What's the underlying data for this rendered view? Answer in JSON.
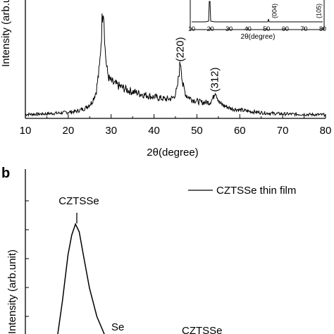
{
  "chart_data": [
    {
      "panel": "",
      "type": "line",
      "xlabel": "2θ(degree)",
      "ylabel": "Intensity (arb.unit)",
      "xlim": [
        10,
        80
      ],
      "xticks": [
        10,
        20,
        30,
        40,
        50,
        60,
        70,
        80
      ],
      "xtick_labels": [
        "10",
        "20",
        "30",
        "40",
        "50",
        "60",
        "70",
        "80"
      ],
      "x": [
        10,
        14,
        18,
        22,
        24,
        25.5,
        26.5,
        27.3,
        27.8,
        28.1,
        28.3,
        28.6,
        29,
        29.6,
        30.5,
        32,
        34,
        37,
        40,
        43,
        44.5,
        45.4,
        45.8,
        46.2,
        46.7,
        47.5,
        49,
        51,
        53,
        53.8,
        54.3,
        54.7,
        55.3,
        56.5,
        58,
        62,
        66,
        70,
        75,
        80
      ],
      "values": [
        0.9,
        1.0,
        1.2,
        1.6,
        2.3,
        3.6,
        6.0,
        11.5,
        20.0,
        26.0,
        24.0,
        15.5,
        11.0,
        8.7,
        7.9,
        7.2,
        6.3,
        5.5,
        4.8,
        4.3,
        4.6,
        6.5,
        10.0,
        13.2,
        7.5,
        5.2,
        4.2,
        3.6,
        3.6,
        4.6,
        6.3,
        5.0,
        3.4,
        2.8,
        2.2,
        1.6,
        1.2,
        1.0,
        0.9,
        0.8
      ],
      "annotations": [
        {
          "label": "(220)",
          "x": 46.2
        },
        {
          "label": "(312)",
          "x": 54.3
        }
      ],
      "inset": {
        "xlabel": "2θ(degree)",
        "xlim": [
          10,
          80
        ],
        "xticks": [
          10,
          20,
          30,
          40,
          50,
          60,
          70,
          80
        ],
        "xtick_labels": [
          "10",
          "20",
          "30",
          "40",
          "50",
          "60",
          "70",
          "80"
        ],
        "annotations": [
          {
            "label": "(004)",
            "x": 54.3
          },
          {
            "label": "(105)",
            "x": 78
          }
        ]
      }
    },
    {
      "panel": "b",
      "type": "line",
      "ylabel": "Intensity (arb.unit)",
      "legend": "CZTSSe thin film",
      "legend_position": "top-right",
      "curve": [
        [
          0.0,
          0.0
        ],
        [
          0.1,
          0.3
        ],
        [
          0.22,
          0.72
        ],
        [
          0.3,
          0.9
        ],
        [
          0.38,
          1.0
        ],
        [
          0.46,
          0.93
        ],
        [
          0.55,
          0.72
        ],
        [
          0.68,
          0.42
        ],
        [
          0.84,
          0.16
        ],
        [
          1.0,
          0.0
        ]
      ],
      "annotations": [
        {
          "label": "CZTSSe"
        },
        {
          "label": "Se"
        },
        {
          "label": "CZTSSe"
        }
      ]
    }
  ]
}
